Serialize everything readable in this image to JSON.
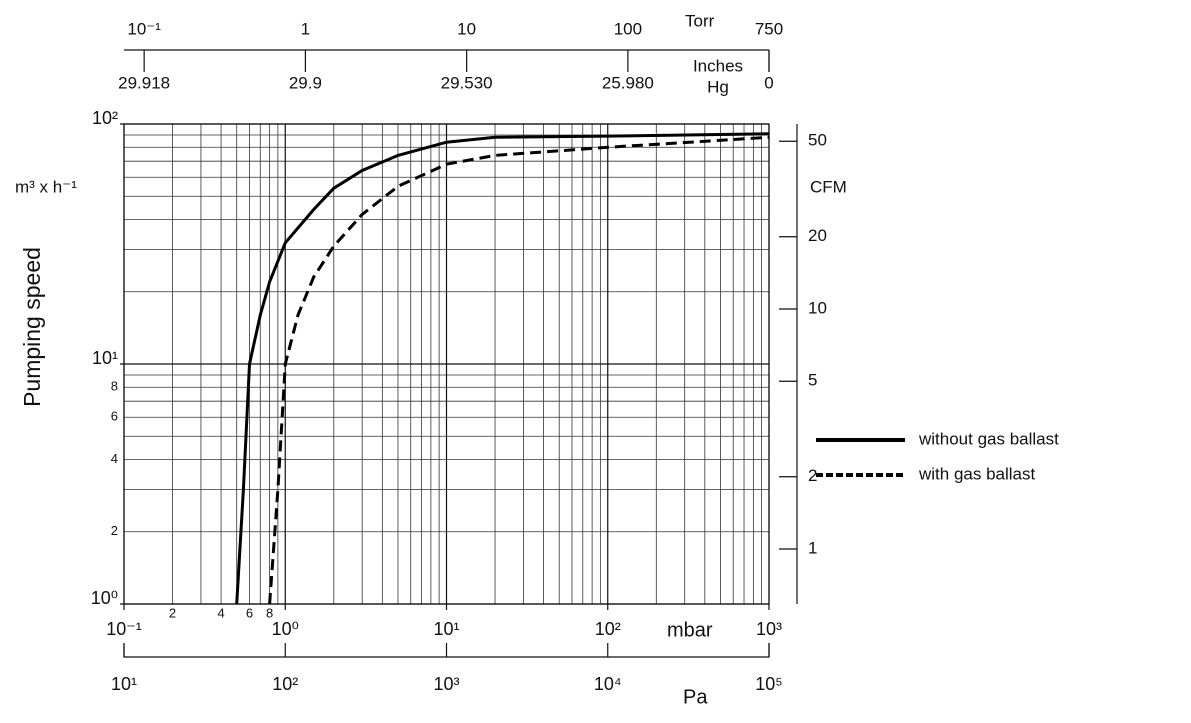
{
  "chart_data": {
    "type": "line",
    "y_label": "Pumping speed",
    "y_unit": "m³ x h⁻¹",
    "x_label": "mbar",
    "xscale": "log",
    "yscale": "log",
    "minor_grid": true,
    "xlim": [
      0.1,
      1000
    ],
    "xticks": [
      {
        "value": 0.1,
        "label": "10⁻¹"
      },
      {
        "value": 1,
        "label": "10⁰"
      },
      {
        "value": 10,
        "label": "10¹"
      },
      {
        "value": 100,
        "label": "10²"
      },
      {
        "value": 1000,
        "label": "10³"
      }
    ],
    "xminor_ticks": [
      {
        "value": 0.2,
        "label": "2"
      },
      {
        "value": 0.4,
        "label": "4"
      },
      {
        "value": 0.6,
        "label": "6"
      },
      {
        "value": 0.8,
        "label": "8"
      }
    ],
    "ylim": [
      1,
      100
    ],
    "yticks": [
      {
        "value": 1,
        "label": "10⁰"
      },
      {
        "value": 10,
        "label": "10¹"
      },
      {
        "value": 100,
        "label": "10²"
      }
    ],
    "yminor_ticks": [
      2,
      4,
      6,
      8
    ],
    "y2_label": "CFM",
    "y2lim": [
      0.59,
      59
    ],
    "y2ticks": [
      1,
      2,
      5,
      10,
      20,
      50
    ],
    "pa_label": "Pa",
    "pa_lim": [
      10,
      100000
    ],
    "pa_ticks": [
      {
        "value": 10,
        "label": "10¹"
      },
      {
        "value": 100,
        "label": "10²"
      },
      {
        "value": 1000,
        "label": "10³"
      },
      {
        "value": 10000,
        "label": "10⁴"
      },
      {
        "value": 100000,
        "label": "10⁵"
      }
    ],
    "torr_label": "Torr",
    "torr_lim": [
      0.075,
      750
    ],
    "torr_ticks": [
      {
        "value": 0.1,
        "label": "10⁻¹"
      },
      1,
      10,
      100,
      750
    ],
    "inhg_label": [
      "Inches",
      "Hg"
    ],
    "inhg_ticks": [
      29.918,
      29.9,
      {
        "value": 29.53,
        "label": "29.530"
      },
      {
        "value": 25.98,
        "label": "25.980"
      },
      0
    ],
    "series": [
      {
        "name": "without gas ballast",
        "color": "#000000",
        "dash": false,
        "x": [
          0.5,
          0.55,
          0.6,
          0.7,
          0.8,
          1,
          1.5,
          2,
          3,
          5,
          10,
          20,
          100,
          1000
        ],
        "values": [
          1,
          3,
          10,
          16,
          22,
          32,
          44,
          54,
          64,
          74,
          84,
          88,
          89,
          91
        ]
      },
      {
        "name": "with gas ballast",
        "color": "#000000",
        "dash": true,
        "x": [
          0.8,
          0.9,
          1,
          1.2,
          1.5,
          2,
          3,
          5,
          10,
          20,
          100,
          1000
        ],
        "values": [
          1,
          3,
          10,
          16,
          23,
          31,
          42,
          55,
          68,
          74,
          80,
          88
        ]
      }
    ]
  }
}
